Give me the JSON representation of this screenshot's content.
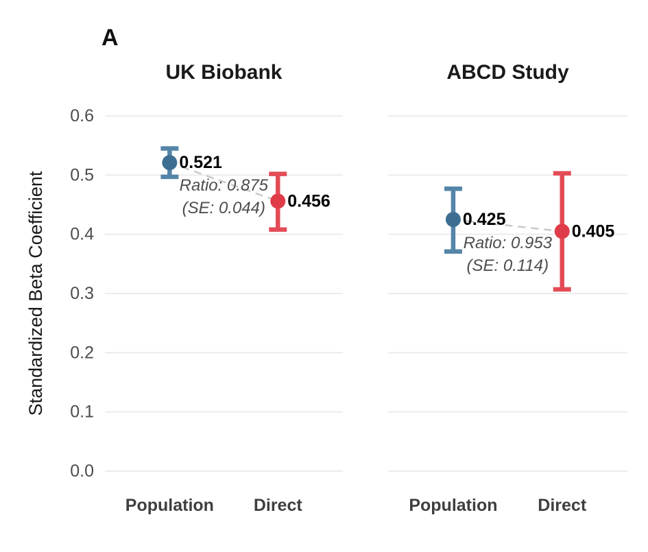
{
  "figure": {
    "panel_label": "A"
  },
  "chart_data": {
    "type": "scatter",
    "title": "",
    "xlabel": "",
    "ylabel": "Standardized Beta Coefficient",
    "ylim": [
      0.0,
      0.6
    ],
    "yticks": [
      0.0,
      0.1,
      0.2,
      0.3,
      0.4,
      0.5,
      0.6
    ],
    "grid": "horizontal",
    "legend": "none",
    "categories": [
      "Population",
      "Direct"
    ],
    "panels": [
      {
        "title": "UK Biobank",
        "annotation_line1": "Ratio: 0.875",
        "annotation_line2": "(SE: 0.044)",
        "points": [
          {
            "category": "Population",
            "value": 0.521,
            "label": "0.521",
            "ci_low": 0.497,
            "ci_high": 0.545,
            "series": "population"
          },
          {
            "category": "Direct",
            "value": 0.456,
            "label": "0.456",
            "ci_low": 0.408,
            "ci_high": 0.502,
            "series": "direct"
          }
        ]
      },
      {
        "title": "ABCD Study",
        "annotation_line1": "Ratio: 0.953",
        "annotation_line2": "(SE: 0.114)",
        "points": [
          {
            "category": "Population",
            "value": 0.425,
            "label": "0.425",
            "ci_low": 0.371,
            "ci_high": 0.477,
            "series": "population"
          },
          {
            "category": "Direct",
            "value": 0.405,
            "label": "0.405",
            "ci_low": 0.307,
            "ci_high": 0.503,
            "series": "direct"
          }
        ]
      }
    ],
    "colors": {
      "population_point": "#3D6E92",
      "population_bar": "#5585A8",
      "direct_point": "#E03B48",
      "direct_bar": "#E34C57",
      "gridline": "#ECECEC",
      "connector": "#C9C9C9",
      "tick_label": "#4D4D4D",
      "annotation": "#4D4D4D",
      "category_label": "#3F3F3F",
      "title": "#1A1A1A",
      "value_label": "#000000"
    }
  }
}
